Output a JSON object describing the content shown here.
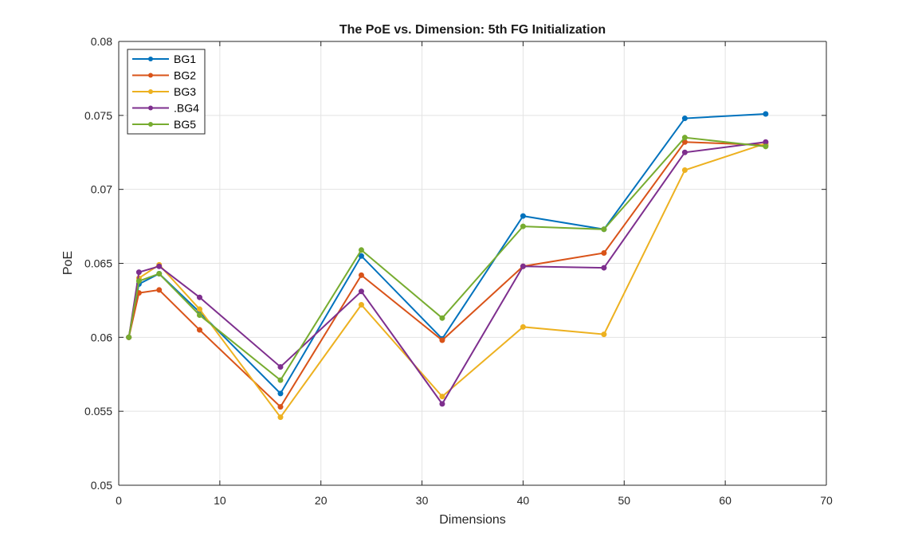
{
  "chart_data": {
    "type": "line",
    "title": "The PoE vs. Dimension: 5th FG Initialization",
    "xlabel": "Dimensions",
    "ylabel": "PoE",
    "xlim": [
      0,
      70
    ],
    "ylim": [
      0.05,
      0.08
    ],
    "xticks": [
      0,
      10,
      20,
      30,
      40,
      50,
      60,
      70
    ],
    "xtick_labels": [
      "0",
      "10",
      "20",
      "30",
      "40",
      "50",
      "60",
      "70"
    ],
    "yticks": [
      0.05,
      0.055,
      0.06,
      0.065,
      0.07,
      0.075,
      0.08
    ],
    "ytick_labels": [
      "0.05",
      "0.055",
      "0.06",
      "0.065",
      "0.07",
      "0.075",
      "0.08"
    ],
    "grid": true,
    "legend_position": "top-left",
    "x": [
      1,
      2,
      4,
      8,
      16,
      24,
      32,
      40,
      48,
      56,
      64
    ],
    "series": [
      {
        "name": "BG1",
        "color": "#0072BD",
        "values": [
          0.06,
          0.0636,
          0.0643,
          0.0617,
          0.0562,
          0.0655,
          0.0599,
          0.0682,
          0.0673,
          0.0748,
          0.0751
        ]
      },
      {
        "name": "BG2",
        "color": "#D95319",
        "values": [
          0.06,
          0.063,
          0.0632,
          0.0605,
          0.0553,
          0.0642,
          0.0598,
          0.0648,
          0.0657,
          0.0732,
          0.073
        ]
      },
      {
        "name": "BG3",
        "color": "#EDB120",
        "values": [
          0.06,
          0.064,
          0.0649,
          0.0619,
          0.0546,
          0.0622,
          0.056,
          0.0607,
          0.0602,
          0.0713,
          0.0731
        ]
      },
      {
        "name": ".BG4",
        "color": "#7E2F8E",
        "values": [
          0.06,
          0.0644,
          0.0648,
          0.0627,
          0.058,
          0.0631,
          0.0555,
          0.0648,
          0.0647,
          0.0725,
          0.0732
        ]
      },
      {
        "name": "BG5",
        "color": "#77AC30",
        "values": [
          0.06,
          0.0638,
          0.0643,
          0.0615,
          0.0571,
          0.0659,
          0.0613,
          0.0675,
          0.0673,
          0.0735,
          0.0729
        ]
      }
    ]
  }
}
